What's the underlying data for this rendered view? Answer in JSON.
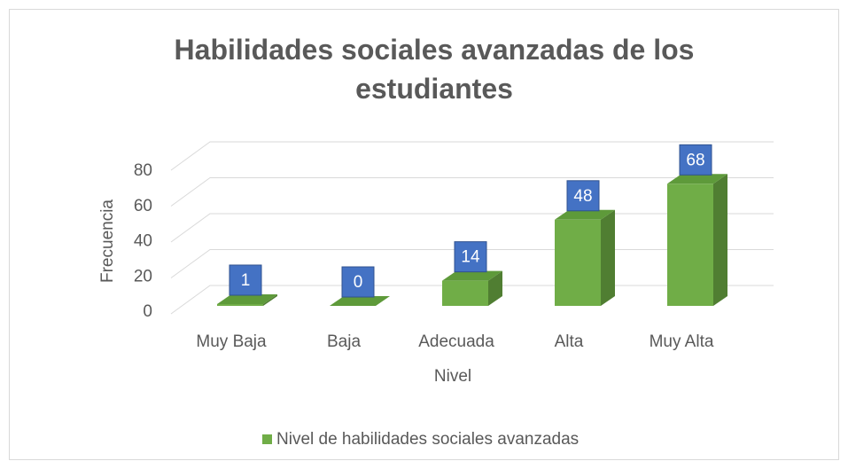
{
  "chart_data": {
    "type": "bar3d",
    "title": "Habilidades sociales avanzadas de los estudiantes",
    "x_label": "Nivel",
    "y_label": "Frecuencia",
    "categories": [
      "Muy Baja",
      "Baja",
      "Adecuada",
      "Alta",
      "Muy Alta"
    ],
    "series": [
      {
        "name": "Nivel de habilidades sociales avanzadas",
        "color": "#70ad47",
        "values": [
          1,
          0,
          14,
          48,
          68
        ]
      }
    ],
    "ylim": [
      0,
      80
    ],
    "yticks": [
      0,
      20,
      40,
      60,
      80
    ],
    "grid": true,
    "legend": "bottom",
    "data_labels": true
  }
}
